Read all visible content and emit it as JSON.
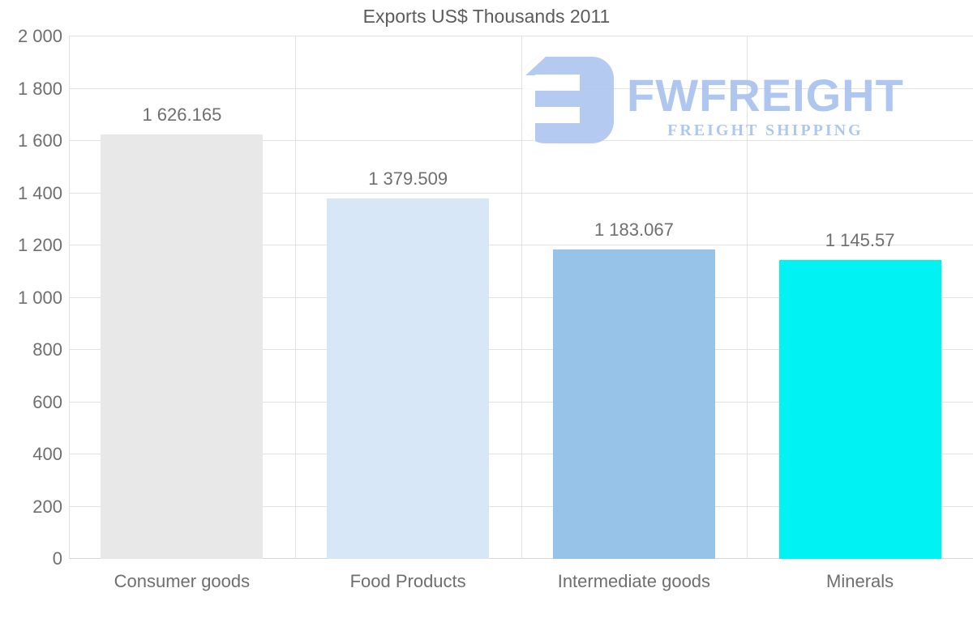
{
  "logo": {
    "brand": "FWFREIGHT",
    "tagline": "FREIGHT SHIPPING",
    "color": "#a9c3ee"
  },
  "chart_data": {
    "type": "bar",
    "title": "Exports US$ Thousands 2011",
    "categories": [
      "Consumer goods",
      "Food Products",
      "Intermediate goods",
      "Minerals"
    ],
    "values": [
      1626.165,
      1379.509,
      1183.067,
      1145.57
    ],
    "value_labels": [
      "1 626.165",
      "1 379.509",
      "1 183.067",
      "1 145.57"
    ],
    "bar_colors": [
      "#e8e8e8",
      "#d8e7f8",
      "#98c3e8",
      "#00f2f2"
    ],
    "xlabel": "",
    "ylabel": "",
    "ylim": [
      0,
      2000
    ],
    "y_ticks": [
      {
        "value": 0,
        "label": "0"
      },
      {
        "value": 200,
        "label": "200"
      },
      {
        "value": 400,
        "label": "400"
      },
      {
        "value": 600,
        "label": "600"
      },
      {
        "value": 800,
        "label": "800"
      },
      {
        "value": 1000,
        "label": "1 000"
      },
      {
        "value": 1200,
        "label": "1 200"
      },
      {
        "value": 1400,
        "label": "1 400"
      },
      {
        "value": 1600,
        "label": "1 600"
      },
      {
        "value": 1800,
        "label": "1 800"
      },
      {
        "value": 2000,
        "label": "2 000"
      }
    ],
    "grid": true,
    "legend": false,
    "colors": {
      "grid": "#e2e2e2",
      "axis_text": "#6f6f6f",
      "title_text": "#5c5c5c",
      "value_label_text": "#6f6f6f"
    }
  }
}
